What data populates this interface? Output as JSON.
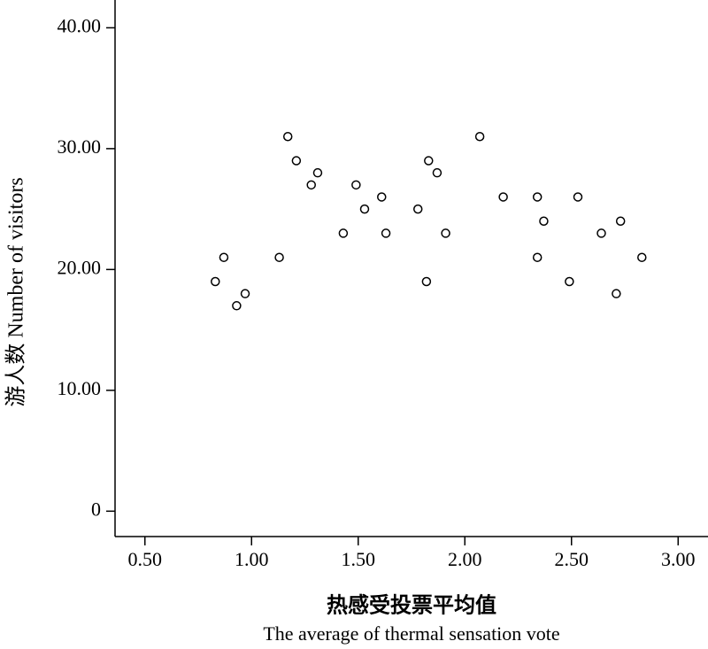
{
  "chart_data": {
    "type": "scatter",
    "xlabel": [
      "热感受投票平均值",
      "The average of thermal sensation vote"
    ],
    "ylabel": "游人数 Number of visitors",
    "x": [
      0.83,
      0.87,
      0.93,
      0.97,
      1.13,
      1.17,
      1.21,
      1.28,
      1.31,
      1.43,
      1.49,
      1.53,
      1.61,
      1.63,
      1.78,
      1.82,
      1.83,
      1.87,
      1.91,
      2.07,
      2.18,
      2.34,
      2.34,
      2.37,
      2.49,
      2.53,
      2.64,
      2.71,
      2.73,
      2.83
    ],
    "values": [
      19,
      21,
      17,
      18,
      21,
      31,
      29,
      27,
      28,
      23,
      27,
      25,
      26,
      23,
      25,
      19,
      29,
      28,
      23,
      31,
      26,
      26,
      21,
      24,
      19,
      26,
      23,
      18,
      24,
      21
    ],
    "color": "#000000",
    "xlim": [
      0.36,
      3.14
    ],
    "ylim": [
      -2.1,
      42.3
    ],
    "xticks": [
      {
        "value": 0.5,
        "label": "0.50"
      },
      {
        "value": 1,
        "label": "1.00"
      },
      {
        "value": 1.5,
        "label": "1.50"
      },
      {
        "value": 2,
        "label": "2.00"
      },
      {
        "value": 2.5,
        "label": "2.50"
      },
      {
        "value": 3,
        "label": "3.00"
      }
    ],
    "yticks": [
      0,
      {
        "value": 10,
        "label": "10.00"
      },
      {
        "value": 20,
        "label": "20.00"
      },
      {
        "value": 30,
        "label": "30.00"
      },
      {
        "value": 40,
        "label": "40.00"
      }
    ],
    "grid": false
  }
}
